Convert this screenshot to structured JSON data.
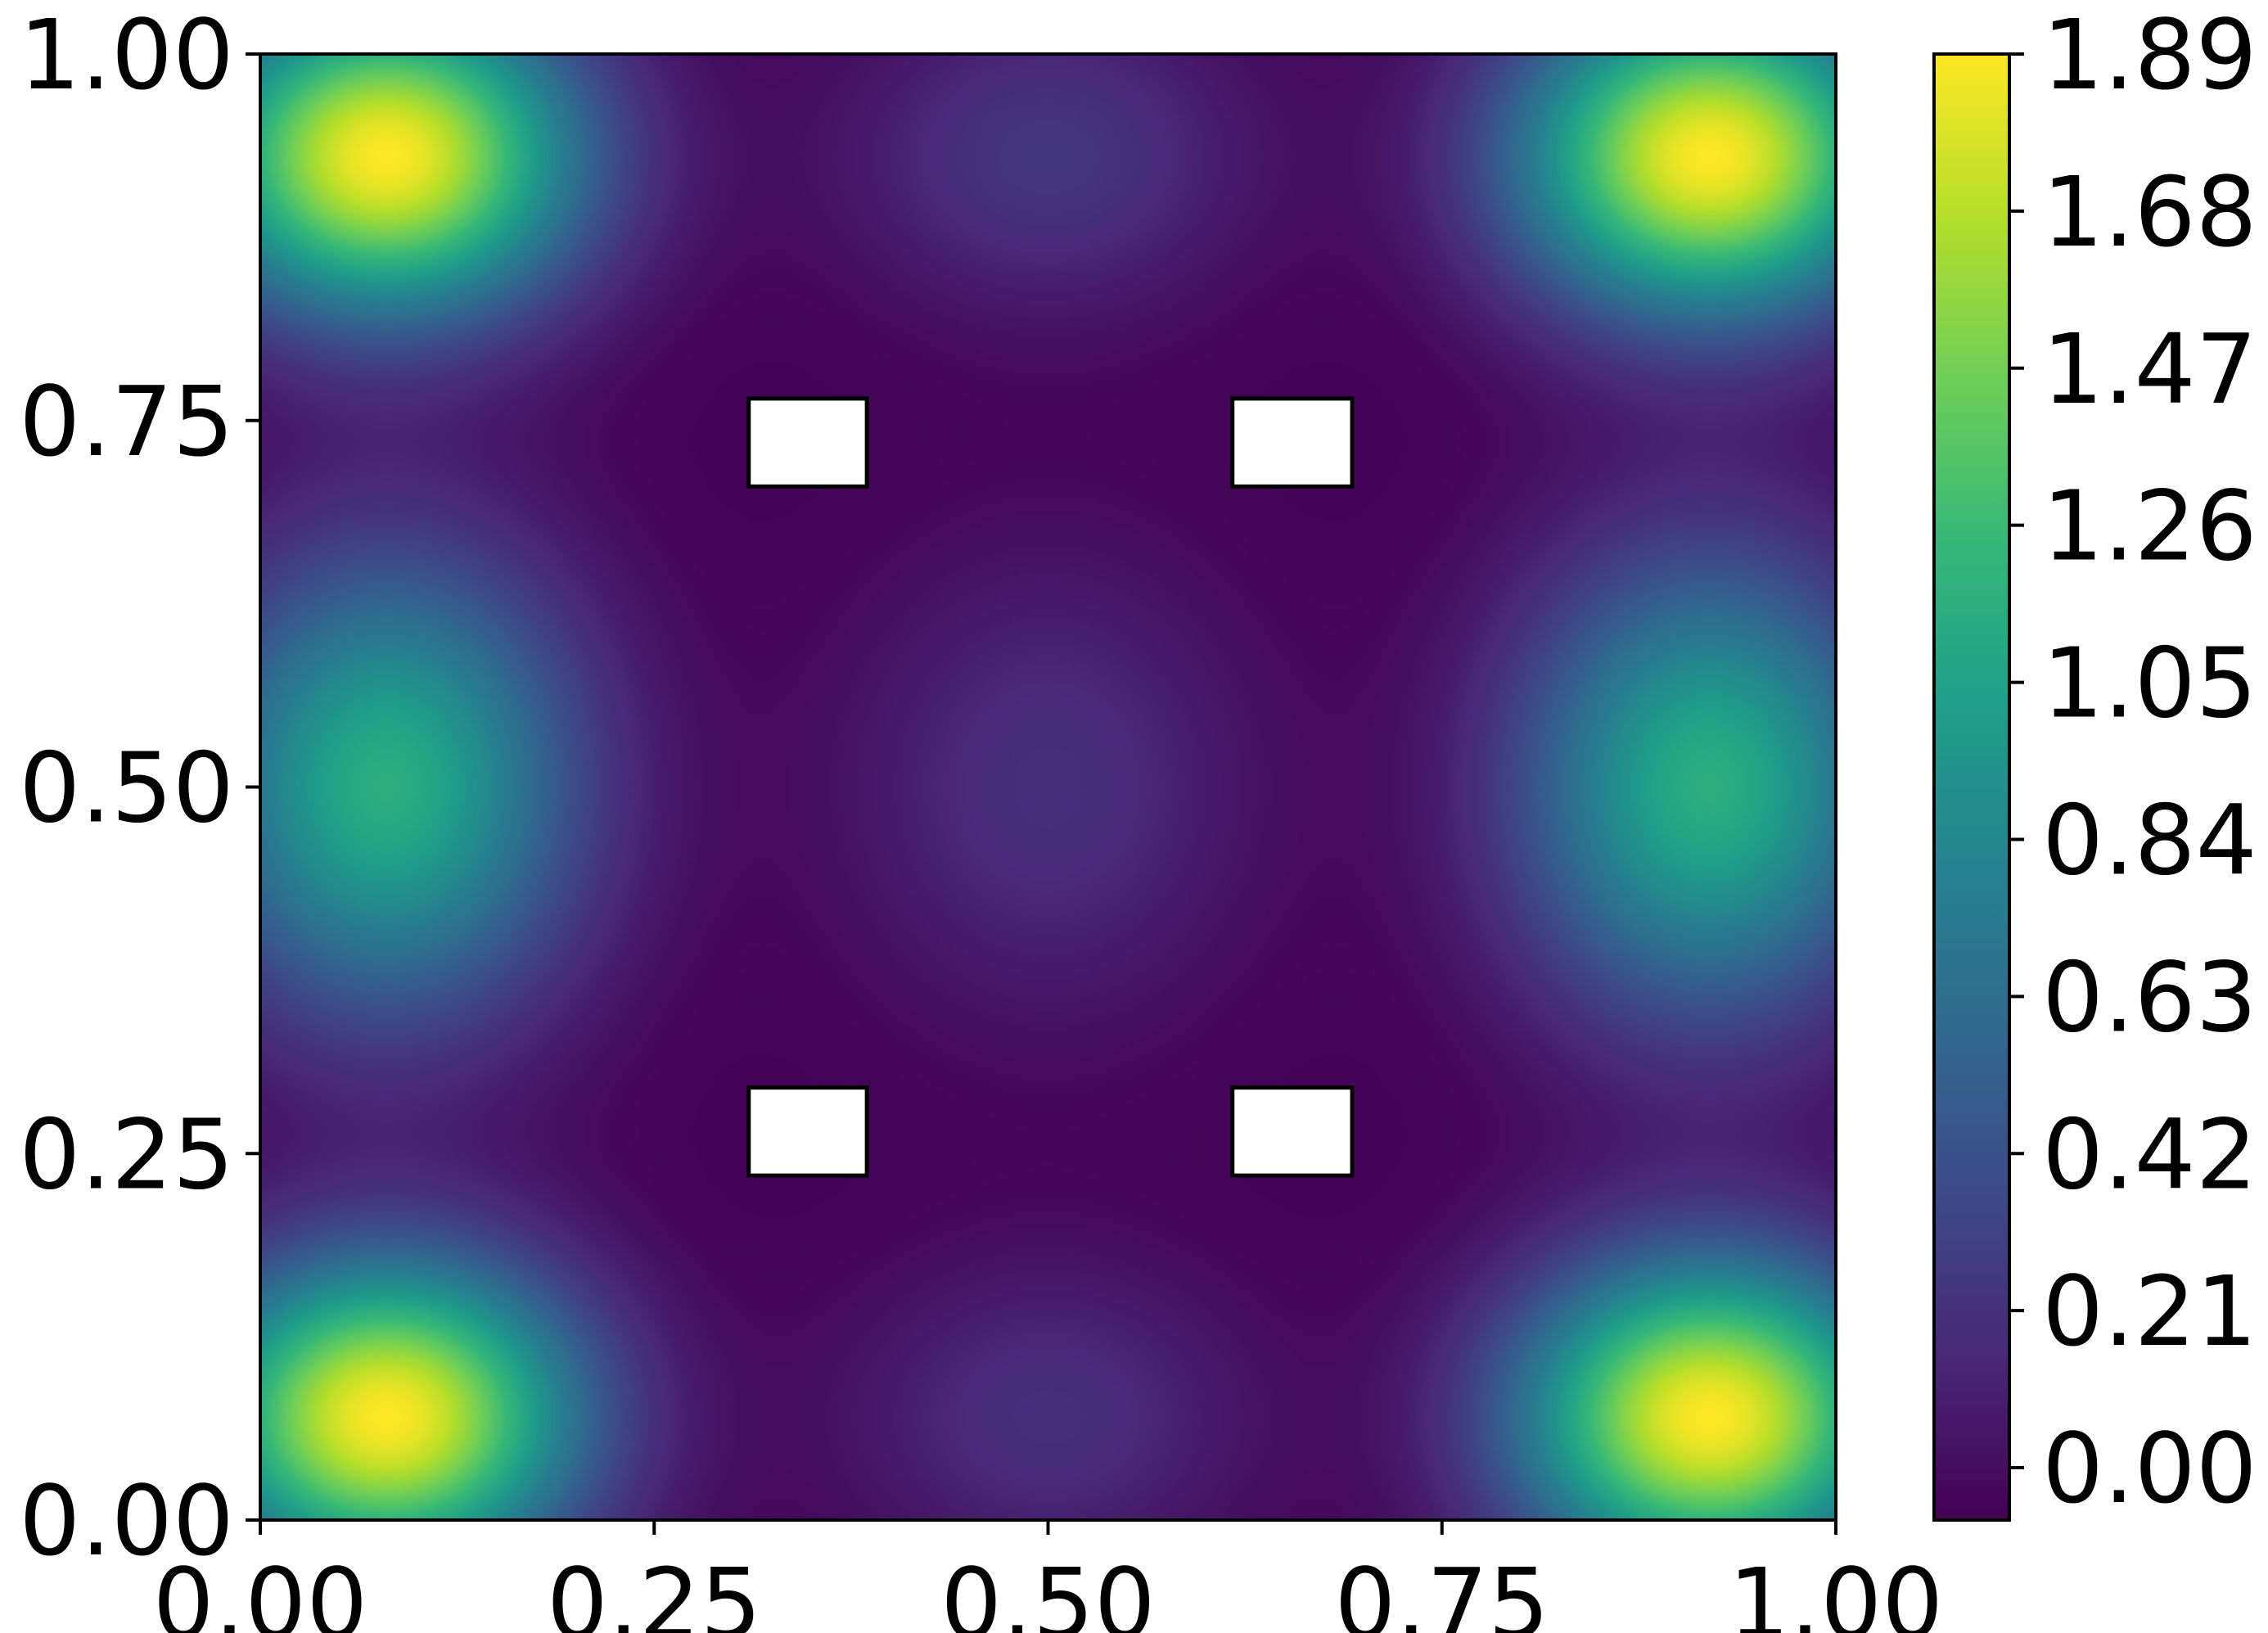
{
  "chart_data": {
    "type": "heatmap",
    "title": "",
    "xlabel": "",
    "ylabel": "",
    "xlim": [
      0.0,
      1.0
    ],
    "ylim": [
      0.0,
      1.0
    ],
    "x_ticks": [
      "0.00",
      "0.25",
      "0.50",
      "0.75",
      "1.00"
    ],
    "y_ticks": [
      "0.00",
      "0.25",
      "0.50",
      "0.75",
      "1.00"
    ],
    "x_tick_values": [
      0.0,
      0.25,
      0.5,
      0.75,
      1.0
    ],
    "y_tick_values": [
      0.0,
      0.25,
      0.5,
      0.75,
      1.0
    ],
    "colormap": "viridis",
    "colorbar": {
      "min": -0.07,
      "max": 1.89,
      "ticks": [
        "0.00",
        "0.21",
        "0.42",
        "0.63",
        "0.84",
        "1.05",
        "1.26",
        "1.47",
        "1.68",
        "1.89"
      ],
      "tick_values": [
        0.0,
        0.21,
        0.42,
        0.63,
        0.84,
        1.05,
        1.26,
        1.47,
        1.68,
        1.89
      ],
      "placement": "right"
    },
    "value_min": -0.07,
    "value_max": 1.89,
    "grid": false,
    "features": [
      {
        "kind": "peak",
        "x": 0.08,
        "y": 0.93,
        "value": 1.89
      },
      {
        "kind": "peak",
        "x": 0.92,
        "y": 0.93,
        "value": 1.89
      },
      {
        "kind": "peak",
        "x": 0.08,
        "y": 0.07,
        "value": 1.89
      },
      {
        "kind": "peak",
        "x": 0.92,
        "y": 0.07,
        "value": 1.89
      },
      {
        "kind": "peak",
        "x": 0.08,
        "y": 0.5,
        "value": 1.15
      },
      {
        "kind": "peak",
        "x": 0.92,
        "y": 0.5,
        "value": 1.15
      },
      {
        "kind": "peak",
        "x": 0.5,
        "y": 0.93,
        "value": 0.25
      },
      {
        "kind": "peak",
        "x": 0.5,
        "y": 0.07,
        "value": 0.2
      },
      {
        "kind": "peak",
        "x": 0.5,
        "y": 0.5,
        "value": 0.2
      }
    ],
    "obstacles": [
      {
        "x0": 0.31,
        "x1": 0.385,
        "y0": 0.705,
        "y1": 0.765
      },
      {
        "x0": 0.617,
        "x1": 0.693,
        "y0": 0.705,
        "y1": 0.765
      },
      {
        "x0": 0.31,
        "x1": 0.385,
        "y0": 0.235,
        "y1": 0.295
      },
      {
        "x0": 0.617,
        "x1": 0.693,
        "y0": 0.235,
        "y1": 0.295
      }
    ],
    "colors": {
      "viridis": [
        "#440154",
        "#482878",
        "#3e4989",
        "#31688e",
        "#26828e",
        "#1f9e89",
        "#35b779",
        "#6ece58",
        "#b5de2b",
        "#fde725"
      ],
      "obstacle_fill": "#ffffff",
      "frame": "#000000"
    }
  }
}
